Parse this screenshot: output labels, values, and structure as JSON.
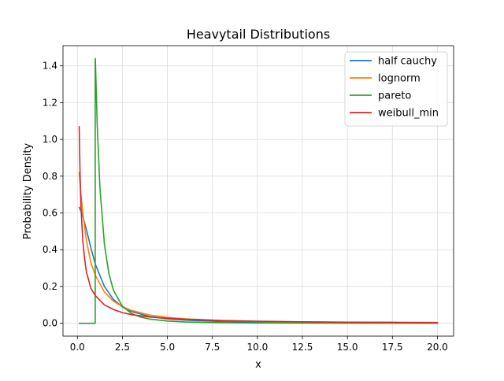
{
  "chart_data": {
    "type": "line",
    "title": "Heavytail Distributions",
    "xlabel": "x",
    "ylabel": "Probability Density",
    "xlim": [
      -0.8,
      20.9
    ],
    "ylim": [
      -0.07,
      1.51
    ],
    "grid": true,
    "legend_position": "top-right",
    "x_ticks": [
      0.0,
      2.5,
      5.0,
      7.5,
      10.0,
      12.5,
      15.0,
      17.5,
      20.0
    ],
    "x_tick_labels": [
      "0.0",
      "2.5",
      "5.0",
      "7.5",
      "10.0",
      "12.5",
      "15.0",
      "17.5",
      "20.0"
    ],
    "y_ticks": [
      0.0,
      0.2,
      0.4,
      0.6,
      0.8,
      1.0,
      1.2,
      1.4
    ],
    "y_tick_labels": [
      "0.0",
      "0.2",
      "0.4",
      "0.6",
      "0.8",
      "1.0",
      "1.2",
      "1.4"
    ],
    "series": [
      {
        "name": "half cauchy",
        "color": "#1f77b4",
        "x": [
          0.1,
          0.25,
          0.5,
          0.75,
          1.0,
          1.5,
          2.0,
          2.5,
          3.0,
          4.0,
          5.0,
          6.0,
          8.0,
          10.0,
          12.5,
          15.0,
          17.5,
          20.0
        ],
        "y": [
          0.63,
          0.6,
          0.51,
          0.41,
          0.32,
          0.2,
          0.13,
          0.088,
          0.064,
          0.037,
          0.024,
          0.017,
          0.0097,
          0.0063,
          0.004,
          0.0028,
          0.0021,
          0.0016
        ]
      },
      {
        "name": "lognorm",
        "color": "#ff7f0e",
        "x": [
          0.1,
          0.2,
          0.3,
          0.5,
          0.75,
          1.0,
          1.5,
          2.0,
          2.5,
          3.0,
          4.0,
          5.0,
          6.0,
          8.0,
          10.0,
          12.5,
          15.0,
          17.5,
          20.0
        ],
        "y": [
          0.82,
          0.7,
          0.6,
          0.45,
          0.33,
          0.26,
          0.17,
          0.12,
          0.09,
          0.07,
          0.045,
          0.032,
          0.024,
          0.015,
          0.01,
          0.007,
          0.005,
          0.004,
          0.003
        ]
      },
      {
        "name": "pareto",
        "color": "#2ca02c",
        "x": [
          0.1,
          0.99,
          0.99,
          1.0,
          1.1,
          1.25,
          1.5,
          1.75,
          2.0,
          2.5,
          3.0,
          3.5,
          4.0,
          5.0,
          6.0,
          8.0,
          10.0,
          12.5,
          15.0,
          17.5,
          20.0
        ],
        "y": [
          0.0,
          0.0,
          1.44,
          1.43,
          1.08,
          0.74,
          0.43,
          0.27,
          0.18,
          0.092,
          0.053,
          0.034,
          0.023,
          0.012,
          0.0069,
          0.0029,
          0.0015,
          0.0008,
          0.0004,
          0.0003,
          0.0002
        ]
      },
      {
        "name": "weibull_min",
        "color": "#d62728",
        "x": [
          0.1,
          0.15,
          0.2,
          0.3,
          0.4,
          0.5,
          0.75,
          1.0,
          1.5,
          2.0,
          2.5,
          3.0,
          4.0,
          5.0,
          6.0,
          8.0,
          10.0,
          12.5,
          15.0,
          17.5,
          20.0
        ],
        "y": [
          1.07,
          0.8,
          0.63,
          0.45,
          0.35,
          0.28,
          0.19,
          0.15,
          0.1,
          0.075,
          0.058,
          0.047,
          0.034,
          0.027,
          0.022,
          0.015,
          0.011,
          0.008,
          0.006,
          0.005,
          0.004
        ]
      }
    ]
  }
}
